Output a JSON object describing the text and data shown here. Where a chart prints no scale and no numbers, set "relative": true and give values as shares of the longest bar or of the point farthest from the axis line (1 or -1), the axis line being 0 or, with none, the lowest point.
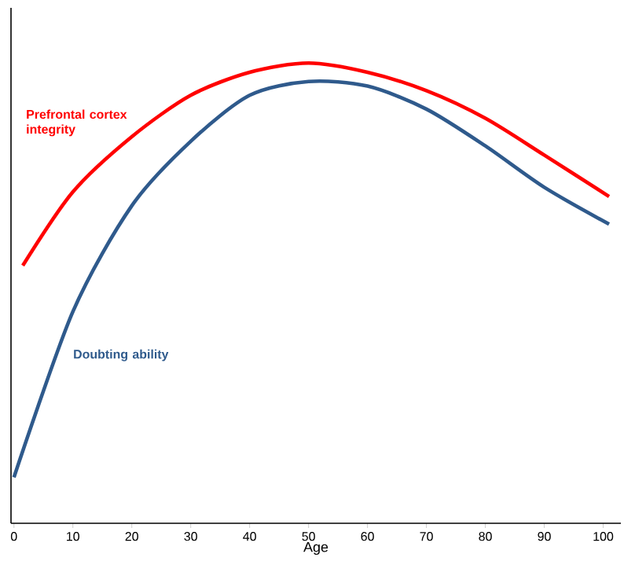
{
  "chart_data": {
    "type": "line",
    "relative": true,
    "xlabel": "Age",
    "xlim": [
      -0.5,
      103
    ],
    "xticks": [
      0,
      10,
      20,
      30,
      40,
      50,
      60,
      70,
      80,
      90,
      100
    ],
    "series": [
      {
        "name": "Prefrontal cortex integrity",
        "color": "#ff0000",
        "x": [
          1.5,
          10,
          20,
          30,
          40,
          50,
          60,
          70,
          80,
          90,
          101
        ],
        "values": [
          0.56,
          0.72,
          0.84,
          0.93,
          0.98,
          1.0,
          0.98,
          0.94,
          0.88,
          0.8,
          0.71
        ]
      },
      {
        "name": "Doubting ability",
        "color": "#2f5a8c",
        "x": [
          0,
          10,
          20,
          30,
          40,
          50,
          60,
          70,
          80,
          90,
          101
        ],
        "values": [
          0.1,
          0.46,
          0.69,
          0.83,
          0.93,
          0.96,
          0.95,
          0.9,
          0.82,
          0.73,
          0.65
        ]
      }
    ]
  }
}
